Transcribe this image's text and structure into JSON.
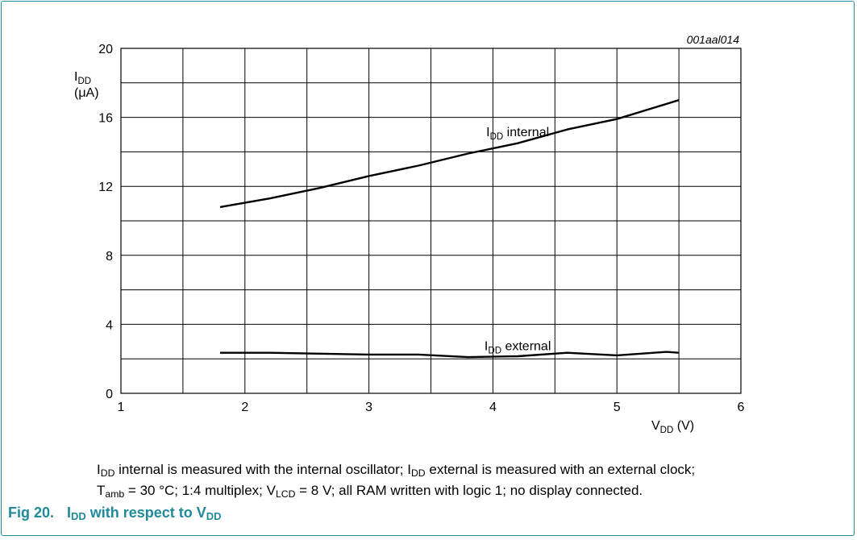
{
  "chart_data": {
    "type": "line",
    "figure_id": "001aal014",
    "y_label": {
      "main": "I",
      "sub": "DD",
      "unit": "(μA)"
    },
    "x_label": {
      "main": "V",
      "sub": "DD",
      "unit": " (V)"
    },
    "xlim": [
      1,
      6
    ],
    "ylim": [
      0,
      20
    ],
    "x_ticks": [
      "1",
      "2",
      "3",
      "4",
      "5",
      "6"
    ],
    "y_ticks": [
      "0",
      "4",
      "8",
      "12",
      "16",
      "20"
    ],
    "x_minor_step": 0.5,
    "y_minor_step": 2,
    "grid": true,
    "series": [
      {
        "label_main": "I",
        "label_sub": "DD",
        "label_rest": " internal",
        "label_at": [
          4.2,
          14.9
        ],
        "x": [
          1.8,
          2.2,
          2.6,
          3.0,
          3.4,
          3.8,
          4.2,
          4.6,
          5.0,
          5.5
        ],
        "y": [
          10.8,
          11.3,
          11.9,
          12.6,
          13.2,
          13.9,
          14.5,
          15.3,
          15.9,
          17.0
        ]
      },
      {
        "label_main": "I",
        "label_sub": "DD",
        "label_rest": " external",
        "label_at": [
          4.2,
          2.5
        ],
        "x": [
          1.8,
          2.2,
          2.6,
          3.0,
          3.4,
          3.8,
          4.2,
          4.6,
          5.0,
          5.4,
          5.5
        ],
        "y": [
          2.35,
          2.35,
          2.3,
          2.25,
          2.25,
          2.1,
          2.15,
          2.35,
          2.2,
          2.4,
          2.35
        ]
      }
    ],
    "caption": {
      "line1": [
        {
          "t": "I"
        },
        {
          "t": "DD",
          "sub": true
        },
        {
          "t": " internal is measured with the internal oscillator; I"
        },
        {
          "t": "DD",
          "sub": true
        },
        {
          "t": " external is measured with an external clock;"
        }
      ],
      "line2": [
        {
          "t": "T"
        },
        {
          "t": "amb",
          "sub": true
        },
        {
          "t": " = 30 °C; 1:4 multiplex; V"
        },
        {
          "t": "LCD",
          "sub": true
        },
        {
          "t": " = 8 V; all RAM written with logic 1; no display connected."
        }
      ]
    },
    "figure_title": {
      "number": "Fig 20.",
      "parts": [
        {
          "t": "I"
        },
        {
          "t": "DD",
          "sub": true
        },
        {
          "t": " with respect to V"
        },
        {
          "t": "DD",
          "sub": true
        }
      ]
    }
  }
}
